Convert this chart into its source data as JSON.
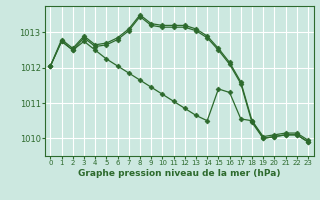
{
  "bg_color": "#cce8e0",
  "grid_color": "#ffffff",
  "line_color": "#2d6a2d",
  "text_color": "#2d6a2d",
  "xlabel": "Graphe pression niveau de la mer (hPa)",
  "ylim": [
    1009.5,
    1013.75
  ],
  "xlim": [
    -0.5,
    23.5
  ],
  "yticks": [
    1010,
    1011,
    1012,
    1013
  ],
  "xticks": [
    0,
    1,
    2,
    3,
    4,
    5,
    6,
    7,
    8,
    9,
    10,
    11,
    12,
    13,
    14,
    15,
    16,
    17,
    18,
    19,
    20,
    21,
    22,
    23
  ],
  "line1": [
    1012.05,
    1012.8,
    1012.55,
    1012.9,
    1012.65,
    1012.7,
    1012.85,
    1013.1,
    1013.5,
    1013.25,
    1013.2,
    1013.2,
    1013.2,
    1013.1,
    1012.9,
    1012.55,
    1012.15,
    1011.6,
    1010.5,
    1010.05,
    1010.1,
    1010.15,
    1010.15,
    1009.95
  ],
  "line2": [
    1012.05,
    1012.75,
    1012.5,
    1012.85,
    1012.6,
    1012.65,
    1012.8,
    1013.05,
    1013.45,
    1013.2,
    1013.15,
    1013.15,
    1013.15,
    1013.05,
    1012.85,
    1012.5,
    1012.1,
    1011.55,
    1010.45,
    1010.0,
    1010.05,
    1010.1,
    1010.1,
    1009.9
  ],
  "line3": [
    1012.05,
    1012.75,
    1012.5,
    1012.75,
    1012.5,
    1012.25,
    1012.05,
    1011.85,
    1011.65,
    1011.45,
    1011.25,
    1011.05,
    1010.85,
    1010.65,
    1010.5,
    1011.4,
    1011.3,
    1010.55,
    1010.5,
    1010.0,
    1010.05,
    1010.1,
    1010.1,
    1009.9
  ]
}
